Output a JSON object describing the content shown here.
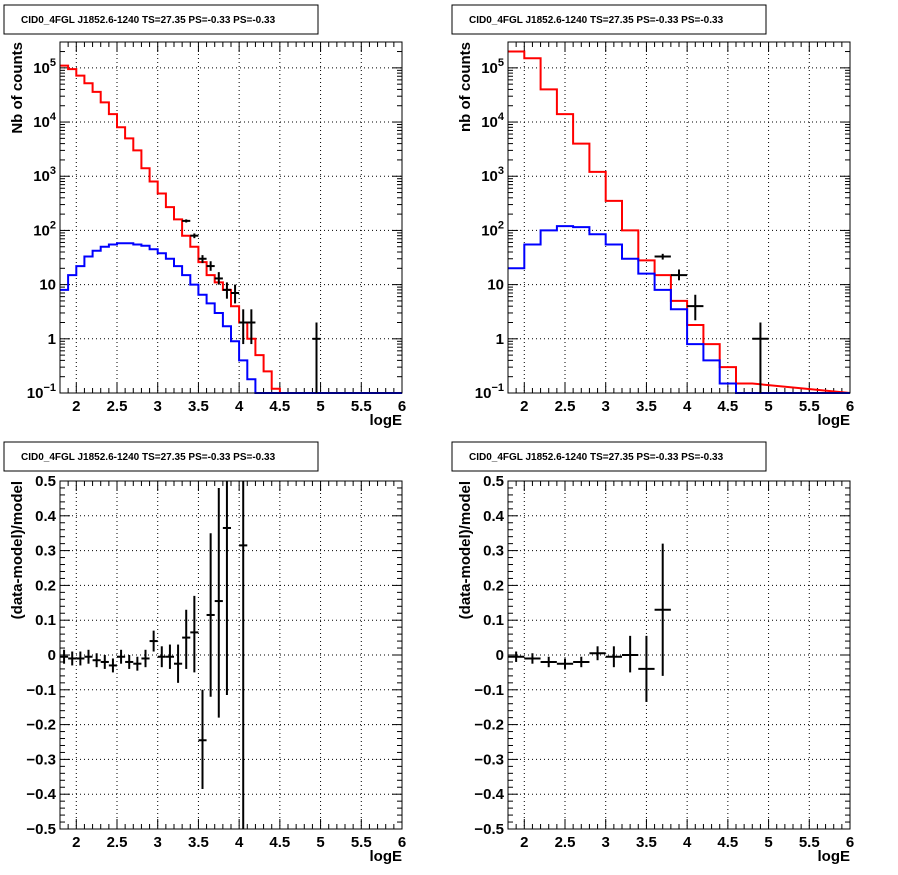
{
  "colors": {
    "total": "#ff0000",
    "source": "#0000ff",
    "data": "#000000",
    "grid": "#000000"
  },
  "chart_data": [
    {
      "id": "top-left",
      "type": "histogram",
      "title": "CID0_4FGL J1852.6-1240 TS=27.35 PS=-0.33 PS=-0.33",
      "xlabel": "logE",
      "ylabel": "Nb of counts",
      "xlim": [
        1.8,
        6
      ],
      "ylim": [
        0.1,
        300000
      ],
      "yscale": "log",
      "grid": true,
      "xticks": [
        2,
        2.5,
        3,
        3.5,
        4,
        4.5,
        5,
        5.5,
        6
      ],
      "xtick_labels": [
        "2",
        "2.5",
        "3",
        "3.5",
        "4",
        "4.5",
        "5",
        "5.5",
        "6"
      ],
      "yticks": [
        0.1,
        1,
        10,
        100,
        1000,
        10000,
        100000
      ],
      "ytick_labels": [
        {
          "base": "10",
          "exp": "−1"
        },
        {
          "base": "1",
          "exp": ""
        },
        {
          "base": "10",
          "exp": ""
        },
        {
          "base": "10",
          "exp": "2"
        },
        {
          "base": "10",
          "exp": "3"
        },
        {
          "base": "10",
          "exp": "4"
        },
        {
          "base": "10",
          "exp": "5"
        }
      ],
      "bin_edges": [
        1.8,
        1.9,
        2.0,
        2.1,
        2.2,
        2.3,
        2.4,
        2.5,
        2.6,
        2.7,
        2.8,
        2.9,
        3.0,
        3.1,
        3.2,
        3.3,
        3.4,
        3.5,
        3.6,
        3.7,
        3.8,
        3.9,
        4.0,
        4.1,
        4.2,
        4.3,
        4.4,
        4.5,
        4.6
      ],
      "series": [
        {
          "role": "total",
          "color": "#ff0000",
          "values": [
            110000,
            95000,
            72000,
            52000,
            36000,
            23000,
            14000,
            8000,
            5000,
            3000,
            1400,
            800,
            480,
            270,
            160,
            80,
            50,
            26,
            15,
            11,
            8,
            4,
            2,
            1,
            0.5,
            0.25,
            0.12,
            0.1
          ]
        },
        {
          "role": "source",
          "color": "#0000ff",
          "values": [
            8,
            15,
            22,
            33,
            42,
            50,
            55,
            58,
            58,
            55,
            52,
            45,
            38,
            30,
            22,
            15,
            10,
            6.5,
            4.5,
            3,
            1.7,
            0.9,
            0.4,
            0.18,
            0.1,
            0.1,
            0.1,
            0.1
          ]
        }
      ],
      "data_points": [
        {
          "x": 3.35,
          "y": 150,
          "xerr": 0.05,
          "ylo": 140,
          "yhi": 160
        },
        {
          "x": 3.45,
          "y": 80,
          "xerr": 0.05,
          "ylo": 72,
          "yhi": 88
        },
        {
          "x": 3.55,
          "y": 30,
          "xerr": 0.05,
          "ylo": 25,
          "yhi": 35
        },
        {
          "x": 3.65,
          "y": 22,
          "xerr": 0.05,
          "ylo": 18,
          "yhi": 27
        },
        {
          "x": 3.75,
          "y": 13,
          "xerr": 0.05,
          "ylo": 10,
          "yhi": 17
        },
        {
          "x": 3.85,
          "y": 8,
          "xerr": 0.05,
          "ylo": 5.5,
          "yhi": 11
        },
        {
          "x": 3.95,
          "y": 7,
          "xerr": 0.05,
          "ylo": 4.5,
          "yhi": 10
        },
        {
          "x": 4.05,
          "y": 2,
          "xerr": 0.05,
          "ylo": 0.8,
          "yhi": 3.5
        },
        {
          "x": 4.15,
          "y": 2,
          "xerr": 0.05,
          "ylo": 0.8,
          "yhi": 3.5
        },
        {
          "x": 4.95,
          "y": 1,
          "xerr": 0.05,
          "ylo": 0.1,
          "yhi": 2
        }
      ]
    },
    {
      "id": "top-right",
      "type": "histogram",
      "title": "CID0_4FGL J1852.6-1240 TS=27.35 PS=-0.33 PS=-0.33",
      "xlabel": "logE",
      "ylabel": "nb of counts",
      "xlim": [
        1.8,
        6
      ],
      "ylim": [
        0.1,
        300000
      ],
      "yscale": "log",
      "grid": true,
      "xticks": [
        2,
        2.5,
        3,
        3.5,
        4,
        4.5,
        5,
        5.5,
        6
      ],
      "xtick_labels": [
        "2",
        "2.5",
        "3",
        "3.5",
        "4",
        "4.5",
        "5",
        "5.5",
        "6"
      ],
      "yticks": [
        0.1,
        1,
        10,
        100,
        1000,
        10000,
        100000
      ],
      "ytick_labels": [
        {
          "base": "10",
          "exp": "−1"
        },
        {
          "base": "1",
          "exp": ""
        },
        {
          "base": "10",
          "exp": ""
        },
        {
          "base": "10",
          "exp": "2"
        },
        {
          "base": "10",
          "exp": "3"
        },
        {
          "base": "10",
          "exp": "4"
        },
        {
          "base": "10",
          "exp": "5"
        }
      ],
      "bin_edges": [
        1.8,
        2.0,
        2.2,
        2.4,
        2.6,
        2.8,
        3.0,
        3.2,
        3.4,
        3.6,
        3.8,
        4.0,
        4.2,
        4.4,
        4.6,
        4.8
      ],
      "series": [
        {
          "role": "total",
          "color": "#ff0000",
          "values": [
            200000,
            150000,
            40000,
            14000,
            4000,
            1200,
            350,
            100,
            28,
            15,
            5,
            1.8,
            0.8,
            0.3,
            0.15
          ]
        },
        {
          "role": "source",
          "color": "#0000ff",
          "values": [
            20,
            55,
            100,
            120,
            115,
            85,
            55,
            30,
            16,
            8,
            3.5,
            0.8,
            0.4,
            0.15,
            0.1
          ]
        }
      ],
      "data_points": [
        {
          "x": 3.7,
          "y": 33,
          "xerr": 0.1,
          "ylo": 29,
          "yhi": 37
        },
        {
          "x": 3.9,
          "y": 15,
          "xerr": 0.1,
          "ylo": 12,
          "yhi": 19
        },
        {
          "x": 4.1,
          "y": 4,
          "xerr": 0.1,
          "ylo": 2.2,
          "yhi": 6.5
        },
        {
          "x": 4.9,
          "y": 1,
          "xerr": 0.1,
          "ylo": 0.1,
          "yhi": 2
        }
      ]
    },
    {
      "id": "bottom-left",
      "type": "scatter",
      "title": "CID0_4FGL J1852.6-1240 TS=27.35 PS=-0.33 PS=-0.33",
      "xlabel": "logE",
      "ylabel": "(data-model)/model",
      "xlim": [
        1.8,
        6
      ],
      "ylim": [
        -0.5,
        0.5
      ],
      "yscale": "linear",
      "grid": true,
      "xticks": [
        2,
        2.5,
        3,
        3.5,
        4,
        4.5,
        5,
        5.5,
        6
      ],
      "xtick_labels": [
        "2",
        "2.5",
        "3",
        "3.5",
        "4",
        "4.5",
        "5",
        "5.5",
        "6"
      ],
      "yticks": [
        -0.5,
        -0.4,
        -0.3,
        -0.2,
        -0.1,
        0,
        0.1,
        0.2,
        0.3,
        0.4,
        0.5
      ],
      "ytick_labels": [
        "−0.5",
        "−0.4",
        "−0.3",
        "−0.2",
        "−0.1",
        "0",
        "0.1",
        "0.2",
        "0.3",
        "0.4",
        "0.5"
      ],
      "data_points": [
        {
          "x": 1.85,
          "y": -0.005,
          "xerr": 0.05,
          "ylo": -0.025,
          "yhi": 0.015
        },
        {
          "x": 1.95,
          "y": -0.01,
          "xerr": 0.05,
          "ylo": -0.03,
          "yhi": 0.01
        },
        {
          "x": 2.05,
          "y": -0.01,
          "xerr": 0.05,
          "ylo": -0.03,
          "yhi": 0.01
        },
        {
          "x": 2.15,
          "y": -0.005,
          "xerr": 0.05,
          "ylo": -0.025,
          "yhi": 0.015
        },
        {
          "x": 2.25,
          "y": -0.015,
          "xerr": 0.05,
          "ylo": -0.035,
          "yhi": 0.005
        },
        {
          "x": 2.35,
          "y": -0.02,
          "xerr": 0.05,
          "ylo": -0.04,
          "yhi": 0.0
        },
        {
          "x": 2.45,
          "y": -0.03,
          "xerr": 0.05,
          "ylo": -0.05,
          "yhi": -0.01
        },
        {
          "x": 2.55,
          "y": -0.005,
          "xerr": 0.05,
          "ylo": -0.025,
          "yhi": 0.015
        },
        {
          "x": 2.65,
          "y": -0.02,
          "xerr": 0.05,
          "ylo": -0.04,
          "yhi": 0.0
        },
        {
          "x": 2.75,
          "y": -0.025,
          "xerr": 0.05,
          "ylo": -0.045,
          "yhi": -0.005
        },
        {
          "x": 2.85,
          "y": -0.01,
          "xerr": 0.05,
          "ylo": -0.035,
          "yhi": 0.015
        },
        {
          "x": 2.95,
          "y": 0.04,
          "xerr": 0.05,
          "ylo": 0.01,
          "yhi": 0.07
        },
        {
          "x": 3.05,
          "y": -0.005,
          "xerr": 0.05,
          "ylo": -0.035,
          "yhi": 0.025
        },
        {
          "x": 3.15,
          "y": -0.005,
          "xerr": 0.05,
          "ylo": -0.04,
          "yhi": 0.03
        },
        {
          "x": 3.25,
          "y": -0.025,
          "xerr": 0.05,
          "ylo": -0.08,
          "yhi": 0.03
        },
        {
          "x": 3.35,
          "y": 0.05,
          "xerr": 0.05,
          "ylo": -0.04,
          "yhi": 0.13
        },
        {
          "x": 3.45,
          "y": 0.065,
          "xerr": 0.05,
          "ylo": -0.05,
          "yhi": 0.17
        },
        {
          "x": 3.55,
          "y": -0.245,
          "xerr": 0.05,
          "ylo": -0.385,
          "yhi": -0.1
        },
        {
          "x": 3.65,
          "y": 0.115,
          "xerr": 0.05,
          "ylo": -0.12,
          "yhi": 0.35
        },
        {
          "x": 3.75,
          "y": 0.155,
          "xerr": 0.05,
          "ylo": -0.18,
          "yhi": 0.48
        },
        {
          "x": 3.85,
          "y": 0.365,
          "xerr": 0.05,
          "ylo": -0.115,
          "yhi": 0.5
        },
        {
          "x": 4.05,
          "y": 0.315,
          "xerr": 0.05,
          "ylo": -0.5,
          "yhi": 0.5
        }
      ]
    },
    {
      "id": "bottom-right",
      "type": "scatter",
      "title": "CID0_4FGL J1852.6-1240 TS=27.35 PS=-0.33 PS=-0.33",
      "xlabel": "logE",
      "ylabel": "(data-model)/model",
      "xlim": [
        1.8,
        6
      ],
      "ylim": [
        -0.5,
        0.5
      ],
      "yscale": "linear",
      "grid": true,
      "xticks": [
        2,
        2.5,
        3,
        3.5,
        4,
        4.5,
        5,
        5.5,
        6
      ],
      "xtick_labels": [
        "2",
        "2.5",
        "3",
        "3.5",
        "4",
        "4.5",
        "5",
        "5.5",
        "6"
      ],
      "yticks": [
        -0.5,
        -0.4,
        -0.3,
        -0.2,
        -0.1,
        0,
        0.1,
        0.2,
        0.3,
        0.4,
        0.5
      ],
      "ytick_labels": [
        "−0.5",
        "−0.4",
        "−0.3",
        "−0.2",
        "−0.1",
        "0",
        "0.1",
        "0.2",
        "0.3",
        "0.4",
        "0.5"
      ],
      "data_points": [
        {
          "x": 1.9,
          "y": -0.005,
          "xerr": 0.1,
          "ylo": -0.02,
          "yhi": 0.01
        },
        {
          "x": 2.1,
          "y": -0.01,
          "xerr": 0.1,
          "ylo": -0.025,
          "yhi": 0.005
        },
        {
          "x": 2.3,
          "y": -0.02,
          "xerr": 0.1,
          "ylo": -0.035,
          "yhi": -0.005
        },
        {
          "x": 2.5,
          "y": -0.025,
          "xerr": 0.1,
          "ylo": -0.04,
          "yhi": -0.01
        },
        {
          "x": 2.7,
          "y": -0.02,
          "xerr": 0.1,
          "ylo": -0.035,
          "yhi": -0.005
        },
        {
          "x": 2.9,
          "y": 0.005,
          "xerr": 0.1,
          "ylo": -0.015,
          "yhi": 0.025
        },
        {
          "x": 3.1,
          "y": -0.005,
          "xerr": 0.1,
          "ylo": -0.035,
          "yhi": 0.025
        },
        {
          "x": 3.3,
          "y": 0.0,
          "xerr": 0.1,
          "ylo": -0.05,
          "yhi": 0.055
        },
        {
          "x": 3.5,
          "y": -0.04,
          "xerr": 0.1,
          "ylo": -0.135,
          "yhi": 0.055
        },
        {
          "x": 3.7,
          "y": 0.13,
          "xerr": 0.1,
          "ylo": -0.06,
          "yhi": 0.32
        }
      ]
    }
  ]
}
